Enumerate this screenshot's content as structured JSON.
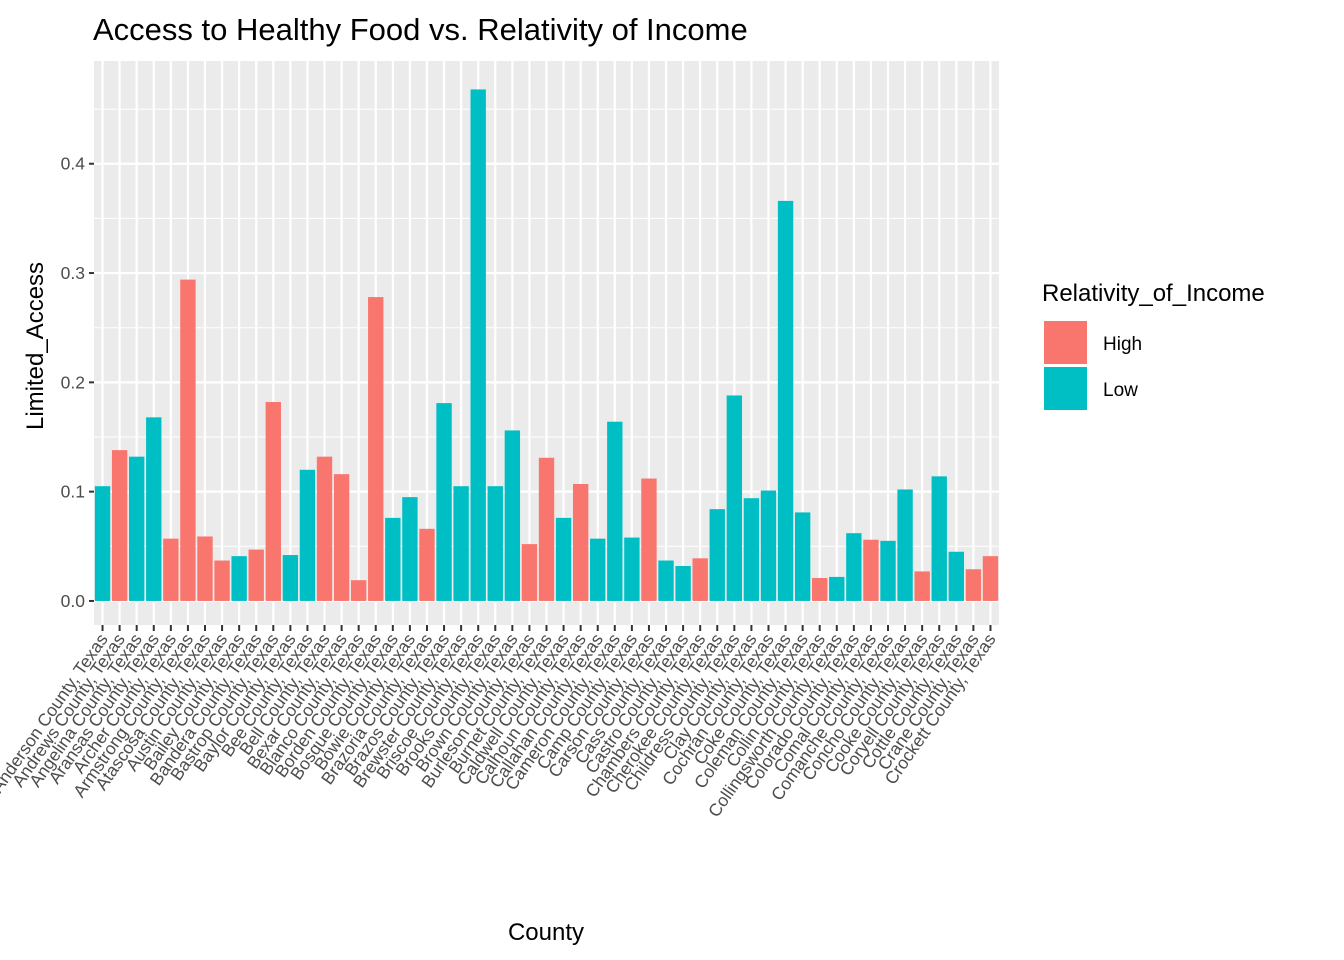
{
  "chart_data": {
    "type": "bar",
    "title": "Access to Healthy Food vs. Relativity of Income",
    "xlabel": "County",
    "ylabel": "Limited_Access",
    "ylim": [
      -0.022,
      0.494
    ],
    "yticks": [
      0.0,
      0.1,
      0.2,
      0.3,
      0.4
    ],
    "ytick_labels": [
      "0.0",
      "0.1",
      "0.2",
      "0.3",
      "0.4"
    ],
    "grid": true,
    "legend": {
      "title": "Relativity_of_Income",
      "placement": "right",
      "entries": [
        {
          "label": "High",
          "color": "#F8766D"
        },
        {
          "label": "Low",
          "color": "#00BFC4"
        }
      ]
    },
    "categories": [
      "Anderson County, Texas",
      "Andrews County, Texas",
      "Angelina County, Texas",
      "Aransas County, Texas",
      "Archer County, Texas",
      "Armstrong County, Texas",
      "Atascosa County, Texas",
      "Austin County, Texas",
      "Bailey County, Texas",
      "Bandera County, Texas",
      "Bastrop County, Texas",
      "Baylor County, Texas",
      "Bee County, Texas",
      "Bell County, Texas",
      "Bexar County, Texas",
      "Blanco County, Texas",
      "Borden County, Texas",
      "Bosque County, Texas",
      "Bowie County, Texas",
      "Brazoria County, Texas",
      "Brazos County, Texas",
      "Brewster County, Texas",
      "Briscoe County, Texas",
      "Brooks County, Texas",
      "Brown County, Texas",
      "Burleson County, Texas",
      "Burnet County, Texas",
      "Caldwell County, Texas",
      "Calhoun County, Texas",
      "Callahan County, Texas",
      "Cameron County, Texas",
      "Camp County, Texas",
      "Carson County, Texas",
      "Cass County, Texas",
      "Castro County, Texas",
      "Chambers County, Texas",
      "Cherokee County, Texas",
      "Childress County, Texas",
      "Clay County, Texas",
      "Cochran County, Texas",
      "Coke County, Texas",
      "Coleman County, Texas",
      "Collin County, Texas",
      "Collingsworth County, Texas",
      "Colorado County, Texas",
      "Comal County, Texas",
      "Comanche County, Texas",
      "Concho County, Texas",
      "Cooke County, Texas",
      "Coryell County, Texas",
      "Cottle County, Texas",
      "Crane County, Texas",
      "Crockett County, Texas"
    ],
    "values": [
      0.105,
      0.138,
      0.132,
      0.168,
      0.057,
      0.294,
      0.059,
      0.037,
      0.041,
      0.047,
      0.182,
      0.042,
      0.12,
      0.132,
      0.116,
      0.019,
      0.278,
      0.076,
      0.095,
      0.066,
      0.181,
      0.105,
      0.468,
      0.105,
      0.156,
      0.052,
      0.131,
      0.076,
      0.107,
      0.057,
      0.164,
      0.058,
      0.112,
      0.037,
      0.032,
      0.039,
      0.084,
      0.188,
      0.094,
      0.101,
      0.366,
      0.081,
      0.021,
      0.022,
      0.062,
      0.056,
      0.055,
      0.102,
      0.027,
      0.114,
      0.045,
      0.029,
      0.041
    ],
    "groups": [
      "Low",
      "High",
      "Low",
      "Low",
      "High",
      "High",
      "High",
      "High",
      "Low",
      "High",
      "High",
      "Low",
      "Low",
      "High",
      "High",
      "High",
      "High",
      "Low",
      "Low",
      "High",
      "Low",
      "Low",
      "Low",
      "Low",
      "Low",
      "High",
      "High",
      "Low",
      "High",
      "Low",
      "Low",
      "Low",
      "High",
      "Low",
      "Low",
      "High",
      "Low",
      "Low",
      "Low",
      "Low",
      "Low",
      "Low",
      "High",
      "Low",
      "Low",
      "High",
      "Low",
      "Low",
      "High",
      "Low",
      "Low",
      "High",
      "High"
    ]
  }
}
